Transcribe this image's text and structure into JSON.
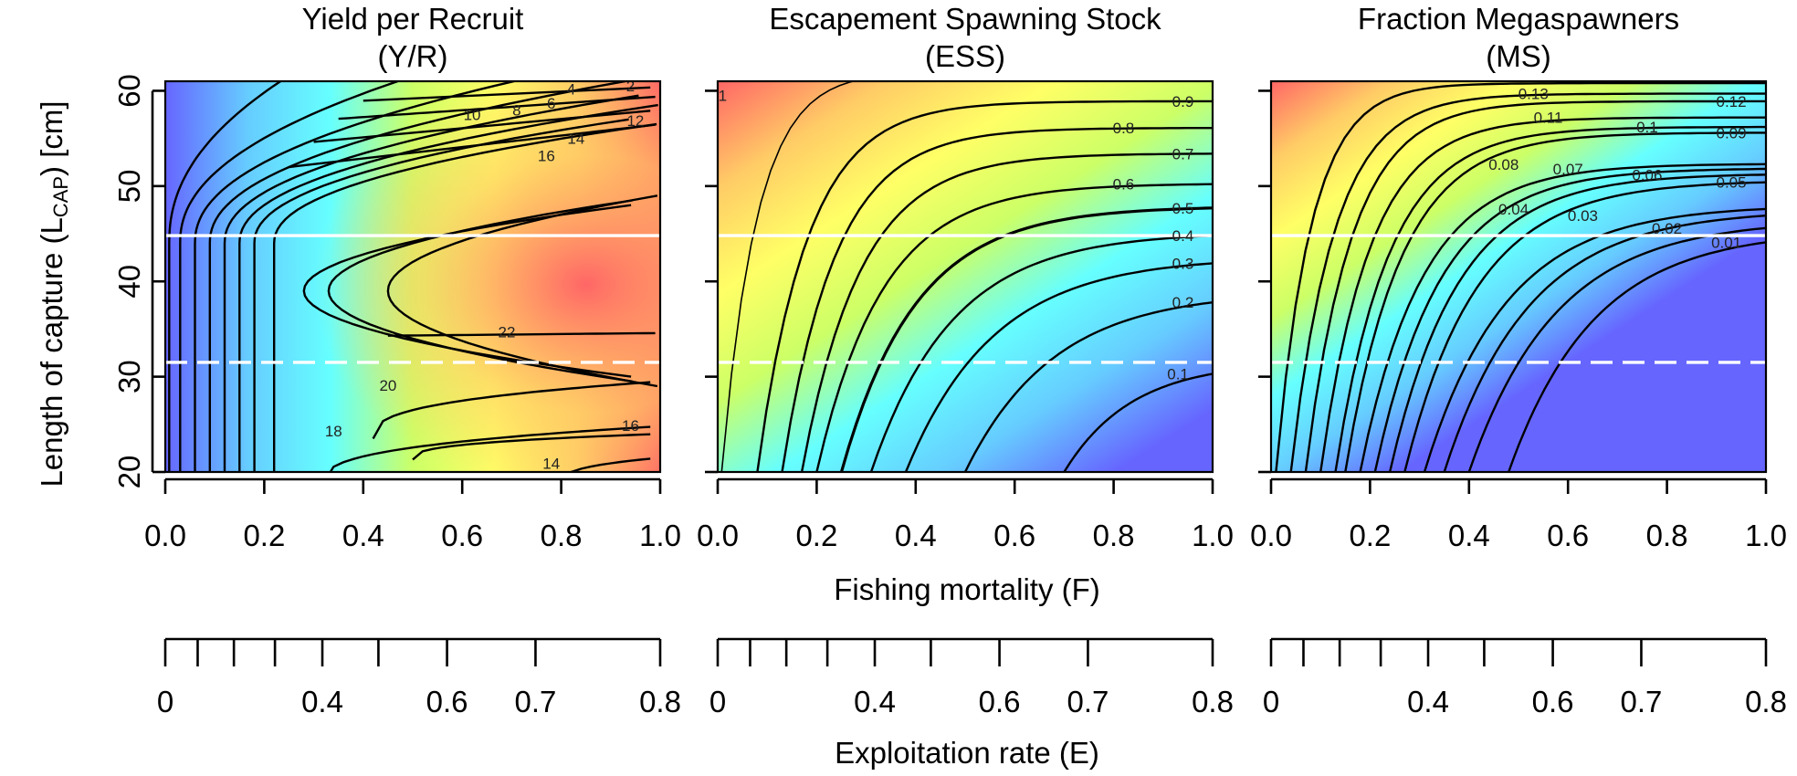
{
  "chart_data": {
    "type": "heatmap",
    "x_label": "Fishing mortality (F)",
    "y_label_parts": [
      "Length of capture (L",
      "CAP",
      ") [cm]"
    ],
    "secondary_x_label": "Exploitation rate (E)",
    "x_range": [
      0,
      1
    ],
    "y_range": [
      20,
      61
    ],
    "x_ticks": [
      "0.0",
      "0.2",
      "0.4",
      "0.6",
      "0.8",
      "1.0"
    ],
    "y_ticks": [
      "20",
      "30",
      "40",
      "50",
      "60"
    ],
    "secondary_x_ticks": [
      {
        "E": 0.0,
        "label": "0"
      },
      {
        "E": 0.1,
        "label": ""
      },
      {
        "E": 0.2,
        "label": ""
      },
      {
        "E": 0.3,
        "label": ""
      },
      {
        "E": 0.4,
        "label": "0.4"
      },
      {
        "E": 0.5,
        "label": ""
      },
      {
        "E": 0.6,
        "label": "0.6"
      },
      {
        "E": 0.7,
        "label": "0.7"
      },
      {
        "E": 0.8,
        "label": "0.8"
      }
    ],
    "reference_lines": [
      {
        "y": 44.8,
        "style": "solid",
        "color": "#ffffff"
      },
      {
        "y": 31.5,
        "style": "dashed",
        "color": "#ffffff"
      }
    ],
    "colorscale": [
      "#6666ff",
      "#66ccff",
      "#66ffff",
      "#ccff66",
      "#ffff66",
      "#ffcc66",
      "#ff6666"
    ],
    "panels": [
      {
        "title_line1": "Yield per Recruit",
        "title_line2": "(Y/R)",
        "contour_labels": [
          {
            "text": "2",
            "F": 0.94,
            "L": 60.5
          },
          {
            "text": "4",
            "F": 0.82,
            "L": 60.2
          },
          {
            "text": "6",
            "F": 0.78,
            "L": 58.7
          },
          {
            "text": "8",
            "F": 0.71,
            "L": 58.0
          },
          {
            "text": "10",
            "F": 0.62,
            "L": 57.5
          },
          {
            "text": "12",
            "F": 0.95,
            "L": 56.9
          },
          {
            "text": "14",
            "F": 0.83,
            "L": 55.0
          },
          {
            "text": "16",
            "F": 0.77,
            "L": 53.2
          },
          {
            "text": "22",
            "F": 0.69,
            "L": 34.7
          },
          {
            "text": "20",
            "F": 0.45,
            "L": 29.1
          },
          {
            "text": "18",
            "F": 0.34,
            "L": 24.3
          },
          {
            "text": "16",
            "F": 0.94,
            "L": 24.9
          },
          {
            "text": "14",
            "F": 0.78,
            "L": 20.9
          }
        ]
      },
      {
        "title_line1": "Escapement Spawning Stock",
        "title_line2": "(ESS)",
        "contour_labels": [
          {
            "text": "1",
            "F": 0.01,
            "L": 59.5
          },
          {
            "text": "0.9",
            "F": 0.94,
            "L": 58.9
          },
          {
            "text": "0.8",
            "F": 0.82,
            "L": 56.1
          },
          {
            "text": "0.7",
            "F": 0.94,
            "L": 53.4
          },
          {
            "text": "0.6",
            "F": 0.82,
            "L": 50.2
          },
          {
            "text": "0.5",
            "F": 0.94,
            "L": 47.7
          },
          {
            "text": "0.4",
            "F": 0.94,
            "L": 44.8
          },
          {
            "text": "0.3",
            "F": 0.94,
            "L": 41.9
          },
          {
            "text": "0.2",
            "F": 0.94,
            "L": 37.8
          },
          {
            "text": "0.1",
            "F": 0.93,
            "L": 30.3
          }
        ]
      },
      {
        "title_line1": "Fraction Megaspawners",
        "title_line2": "(MS)",
        "contour_labels": [
          {
            "text": "0.13",
            "F": 0.53,
            "L": 59.7
          },
          {
            "text": "0.12",
            "F": 0.93,
            "L": 58.9
          },
          {
            "text": "0.11",
            "F": 0.56,
            "L": 57.2
          },
          {
            "text": "0.1",
            "F": 0.76,
            "L": 56.2
          },
          {
            "text": "0.09",
            "F": 0.93,
            "L": 55.6
          },
          {
            "text": "0.08",
            "F": 0.47,
            "L": 52.3
          },
          {
            "text": "0.07",
            "F": 0.6,
            "L": 51.8
          },
          {
            "text": "0.06",
            "F": 0.76,
            "L": 51.2
          },
          {
            "text": "0.05",
            "F": 0.93,
            "L": 50.4
          },
          {
            "text": "0.04",
            "F": 0.49,
            "L": 47.6
          },
          {
            "text": "0.03",
            "F": 0.63,
            "L": 46.9
          },
          {
            "text": "0.02",
            "F": 0.8,
            "L": 45.6
          },
          {
            "text": "0.01",
            "F": 0.92,
            "L": 44.1
          }
        ]
      }
    ]
  }
}
